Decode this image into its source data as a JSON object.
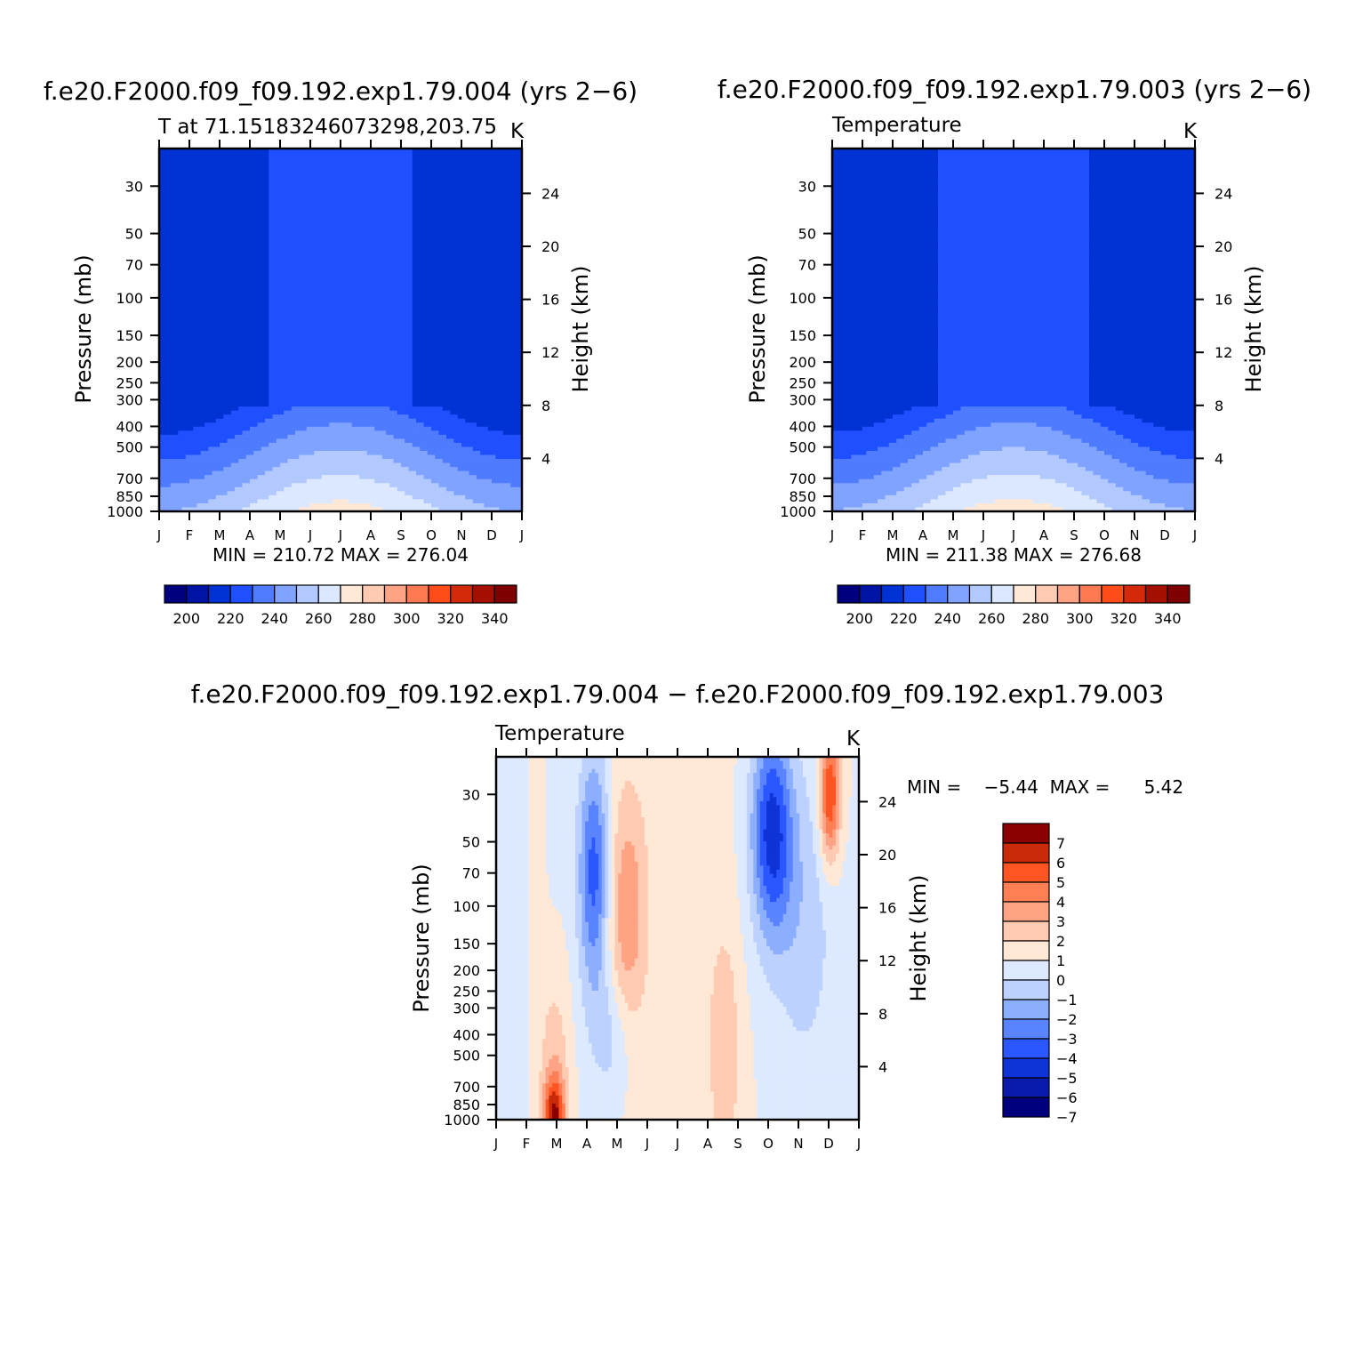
{
  "colors": {
    "abs_scale": [
      "#00007f",
      "#0014a3",
      "#0032d4",
      "#1f50ff",
      "#4f7bff",
      "#7fa3ff",
      "#b2c9ff",
      "#dce8ff",
      "#ffe8d6",
      "#ffcab2",
      "#ffa385",
      "#ff7a52",
      "#ff4d1a",
      "#d42a0a",
      "#a30f00",
      "#7f0000"
    ],
    "diff_scale": [
      "#00007f",
      "#0a1aab",
      "#0f33d6",
      "#2a57ff",
      "#5a84ff",
      "#8caeff",
      "#bdd1ff",
      "#dce9ff",
      "#ffe8d6",
      "#ffcab2",
      "#ffa385",
      "#ff7f55",
      "#ff5522",
      "#c92a0a",
      "#8b0000"
    ],
    "frame": "#000000"
  },
  "panels": {
    "left": {
      "title": "f.e20.F2000.f09_f09.192.exp1.79.004 (yrs 2−6)",
      "left_label": "T at 71.15183246073298,203.75",
      "unit": "K",
      "min_max": "MIN = 210.72  MAX = 276.04",
      "y_label": "Pressure (mb)",
      "y2_label": "Height (km)"
    },
    "right": {
      "title": "f.e20.F2000.f09_f09.192.exp1.79.003 (yrs 2−6)",
      "left_label": "Temperature",
      "unit": "K",
      "min_max": "MIN = 211.38  MAX = 276.68",
      "y_label": "Pressure (mb)",
      "y2_label": "Height (km)"
    },
    "diff": {
      "title": "f.e20.F2000.f09_f09.192.exp1.79.004 − f.e20.F2000.f09_f09.192.exp1.79.003",
      "left_label": "Temperature",
      "unit": "K",
      "min_max": "MIN =    −5.44  MAX =      5.42",
      "y_label": "Pressure (mb)",
      "y2_label": "Height (km)"
    }
  },
  "chart_data": [
    {
      "type": "heatmap",
      "name": "exp1.79.004 temperature",
      "x": [
        "J",
        "F",
        "M",
        "A",
        "M",
        "J",
        "J",
        "A",
        "S",
        "O",
        "N",
        "D",
        "J"
      ],
      "y_pressure_ticks": [
        30,
        50,
        70,
        100,
        150,
        200,
        250,
        300,
        400,
        500,
        700,
        850,
        1000
      ],
      "y2_height_ticks_km": [
        24,
        20,
        16,
        12,
        8,
        4
      ],
      "ylim_mb": [
        20,
        1000
      ],
      "colorbar": {
        "ticks": [
          200,
          220,
          240,
          260,
          280,
          300,
          320,
          340
        ],
        "min": 190,
        "max": 350,
        "step": 10
      },
      "min": 210.72,
      "max": 276.04
    },
    {
      "type": "heatmap",
      "name": "exp1.79.003 temperature",
      "x": [
        "J",
        "F",
        "M",
        "A",
        "M",
        "J",
        "J",
        "A",
        "S",
        "O",
        "N",
        "D",
        "J"
      ],
      "y_pressure_ticks": [
        30,
        50,
        70,
        100,
        150,
        200,
        250,
        300,
        400,
        500,
        700,
        850,
        1000
      ],
      "y2_height_ticks_km": [
        24,
        20,
        16,
        12,
        8,
        4
      ],
      "ylim_mb": [
        20,
        1000
      ],
      "colorbar": {
        "ticks": [
          200,
          220,
          240,
          260,
          280,
          300,
          320,
          340
        ],
        "min": 190,
        "max": 350,
        "step": 10
      },
      "min": 211.38,
      "max": 276.68
    },
    {
      "type": "heatmap",
      "name": "difference",
      "x": [
        "J",
        "F",
        "M",
        "A",
        "M",
        "J",
        "J",
        "A",
        "S",
        "O",
        "N",
        "D",
        "J"
      ],
      "y_pressure_ticks": [
        30,
        50,
        70,
        100,
        150,
        200,
        250,
        300,
        400,
        500,
        700,
        850,
        1000
      ],
      "y2_height_ticks_km": [
        24,
        20,
        16,
        12,
        8,
        4
      ],
      "ylim_mb": [
        20,
        1000
      ],
      "colorbar": {
        "levels": [
          7,
          6,
          5,
          4,
          3,
          2,
          1,
          0,
          -1,
          -2,
          -3,
          -4,
          -5,
          -6,
          -7
        ]
      },
      "min": -5.44,
      "max": 5.42
    }
  ]
}
